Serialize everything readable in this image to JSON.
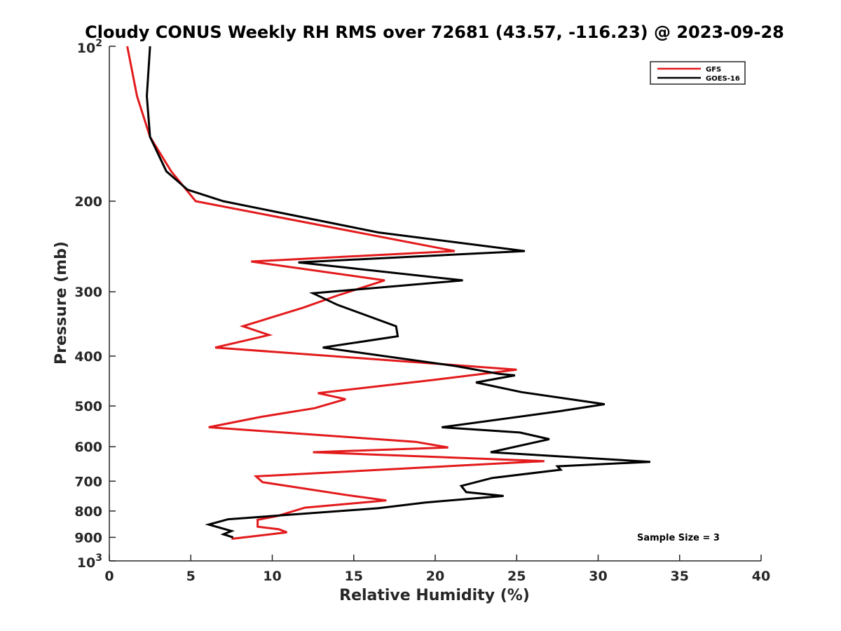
{
  "chart_data": {
    "type": "line",
    "title": "Cloudy CONUS Weekly RH RMS over 72681 (43.57, -116.23) @ 2023-09-28",
    "xlabel": "Relative Humidity (%)",
    "ylabel": "Pressure (mb)",
    "xlim": [
      0,
      40
    ],
    "ylim": [
      100,
      1000
    ],
    "y_scale": "log",
    "y_reversed": true,
    "x_ticks": [
      0,
      5,
      10,
      15,
      20,
      25,
      30,
      35,
      40
    ],
    "x_tick_labels": [
      "0",
      "5",
      "10",
      "15",
      "20",
      "25",
      "30",
      "35",
      "40"
    ],
    "y_ticks": [
      200,
      300,
      400,
      500,
      600,
      700,
      800,
      900
    ],
    "y_tick_labels": [
      "200",
      "300",
      "400",
      "500",
      "600",
      "700",
      "800",
      "900"
    ],
    "y_power_ticks": [
      {
        "value": 100,
        "base": "10",
        "exp": "2"
      },
      {
        "value": 1000,
        "base": "10",
        "exp": "3"
      }
    ],
    "grid": false,
    "legend_position": "top-right",
    "annotation": "Sample Size = 3",
    "series": [
      {
        "name": "GFS",
        "color": "#e31a1c",
        "points": [
          [
            1.1,
            100
          ],
          [
            1.7,
            125
          ],
          [
            2.5,
            150
          ],
          [
            3.8,
            175
          ],
          [
            5.3,
            200
          ],
          [
            21.2,
            250
          ],
          [
            8.7,
            262
          ],
          [
            16.9,
            285
          ],
          [
            14.0,
            305
          ],
          [
            11.9,
            322
          ],
          [
            8.2,
            350
          ],
          [
            9.8,
            364
          ],
          [
            6.5,
            385
          ],
          [
            25.0,
            425
          ],
          [
            19.9,
            445
          ],
          [
            12.8,
            472
          ],
          [
            14.5,
            485
          ],
          [
            12.6,
            505
          ],
          [
            9.3,
            525
          ],
          [
            6.1,
            550
          ],
          [
            18.8,
            587
          ],
          [
            20.8,
            602
          ],
          [
            12.5,
            615
          ],
          [
            26.7,
            640
          ],
          [
            9.0,
            685
          ],
          [
            9.4,
            703
          ],
          [
            14.6,
            745
          ],
          [
            17.0,
            763
          ],
          [
            12.0,
            788
          ],
          [
            10.3,
            818
          ],
          [
            9.1,
            832
          ],
          [
            9.1,
            858
          ],
          [
            10.4,
            868
          ],
          [
            10.9,
            880
          ],
          [
            8.3,
            900
          ],
          [
            7.5,
            906
          ]
        ]
      },
      {
        "name": "GOES-16",
        "color": "#000000",
        "points": [
          [
            2.5,
            100
          ],
          [
            2.3,
            125
          ],
          [
            2.5,
            150
          ],
          [
            3.5,
            175
          ],
          [
            4.8,
            190
          ],
          [
            7.0,
            200
          ],
          [
            16.5,
            230
          ],
          [
            25.5,
            250
          ],
          [
            11.6,
            263
          ],
          [
            21.7,
            285
          ],
          [
            12.5,
            302
          ],
          [
            14.0,
            318
          ],
          [
            17.6,
            350
          ],
          [
            17.7,
            366
          ],
          [
            13.1,
            385
          ],
          [
            21.2,
            418
          ],
          [
            23.9,
            433
          ],
          [
            24.9,
            436
          ],
          [
            22.5,
            450
          ],
          [
            25.3,
            470
          ],
          [
            30.4,
            496
          ],
          [
            27.6,
            512
          ],
          [
            20.4,
            550
          ],
          [
            25.2,
            563
          ],
          [
            27.0,
            580
          ],
          [
            23.4,
            615
          ],
          [
            33.2,
            642
          ],
          [
            27.5,
            655
          ],
          [
            27.7,
            665
          ],
          [
            23.5,
            690
          ],
          [
            21.6,
            715
          ],
          [
            21.9,
            735
          ],
          [
            24.2,
            748
          ],
          [
            19.4,
            770
          ],
          [
            16.5,
            790
          ],
          [
            7.3,
            830
          ],
          [
            6.1,
            850
          ],
          [
            7.5,
            875
          ],
          [
            7.0,
            888
          ],
          [
            7.6,
            900
          ]
        ]
      }
    ]
  }
}
